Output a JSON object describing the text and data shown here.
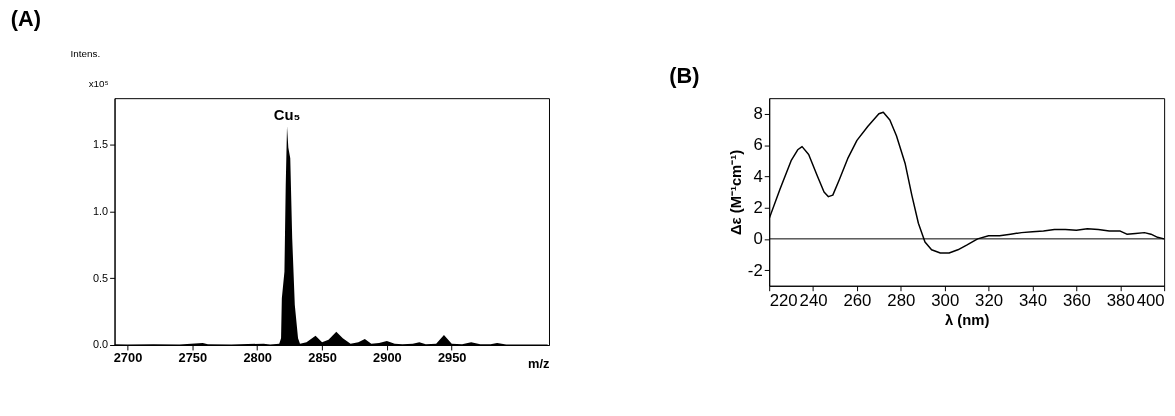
{
  "chart_data": [
    {
      "type": "area",
      "title": "(A)",
      "xlabel": "m/z",
      "ylabel": "Intens.",
      "color": "#000000",
      "grid": false,
      "x": [
        2690,
        2700,
        2720,
        2740,
        2758,
        2762,
        2780,
        2805,
        2810,
        2817,
        2818.4,
        2819,
        2821,
        2822,
        2823,
        2824,
        2825.5,
        2827,
        2829,
        2831.5,
        2833,
        2838,
        2845,
        2850,
        2855,
        2861,
        2866,
        2872,
        2878,
        2883,
        2888,
        2894,
        2900,
        2906,
        2912,
        2920,
        2925,
        2930,
        2938,
        2944,
        2950,
        2958,
        2965,
        2972,
        2980,
        2985,
        2992,
        3010,
        3024
      ],
      "values": [
        0.005,
        0.004,
        0.005,
        0.004,
        0.015,
        0.005,
        0.004,
        0.01,
        0.004,
        0.01,
        0.05,
        0.35,
        0.55,
        1.2,
        1.64,
        1.48,
        1.4,
        0.8,
        0.3,
        0.05,
        0.01,
        0.02,
        0.07,
        0.02,
        0.04,
        0.1,
        0.05,
        0.01,
        0.02,
        0.045,
        0.01,
        0.015,
        0.03,
        0.01,
        0.005,
        0.01,
        0.02,
        0.005,
        0.01,
        0.075,
        0.01,
        0.005,
        0.02,
        0.005,
        0.005,
        0.015,
        0.004,
        0.004,
        0.004
      ],
      "xlim": [
        2690,
        3025
      ],
      "xticks": [
        2700,
        2750,
        2800,
        2850,
        2900,
        2950
      ],
      "ylim": [
        0,
        1.85
      ],
      "yticks": [
        {
          "value": 0,
          "label": "0.0"
        },
        {
          "value": 0.5,
          "label": "0.5"
        },
        {
          "value": 1,
          "label": "1.0"
        },
        {
          "value": 1.5,
          "label": "1.5"
        }
      ],
      "annotations": [
        {
          "text": "Cu₅",
          "x": 2823,
          "y": 1.65
        },
        "x10⁵"
      ]
    },
    {
      "type": "line",
      "title": "(B)",
      "xlabel": "λ (nm)",
      "ylabel": "Δε (M⁻¹cm⁻¹)",
      "color": "#000000",
      "grid": false,
      "x": [
        220,
        225,
        230,
        233,
        235,
        238,
        242,
        245,
        247,
        249,
        252,
        256,
        260,
        265,
        270,
        272,
        275,
        278,
        282,
        285,
        288,
        291,
        294,
        298,
        302,
        306,
        310,
        315,
        320,
        325,
        330,
        335,
        340,
        345,
        350,
        355,
        360,
        365,
        370,
        375,
        380,
        383,
        387,
        391,
        394,
        397,
        400
      ],
      "values": [
        1.3,
        3.2,
        5.0,
        5.7,
        5.9,
        5.4,
        4.0,
        3.0,
        2.7,
        2.8,
        3.8,
        5.2,
        6.3,
        7.2,
        8.0,
        8.1,
        7.6,
        6.6,
        4.8,
        2.8,
        1.0,
        -0.2,
        -0.7,
        -0.9,
        -0.9,
        -0.7,
        -0.4,
        0.0,
        0.2,
        0.2,
        0.3,
        0.4,
        0.45,
        0.5,
        0.6,
        0.6,
        0.55,
        0.65,
        0.6,
        0.5,
        0.5,
        0.3,
        0.35,
        0.4,
        0.3,
        0.1,
        0.0
      ],
      "xlim": [
        220,
        400
      ],
      "xticks": [
        220,
        240,
        260,
        280,
        300,
        320,
        340,
        360,
        380,
        400
      ],
      "ylim": [
        -3,
        9
      ],
      "yticks": [
        -2,
        0,
        2,
        4,
        6,
        8
      ],
      "ref_lines": [
        {
          "axis": "y",
          "value": 0,
          "color": "#000000"
        }
      ]
    }
  ]
}
